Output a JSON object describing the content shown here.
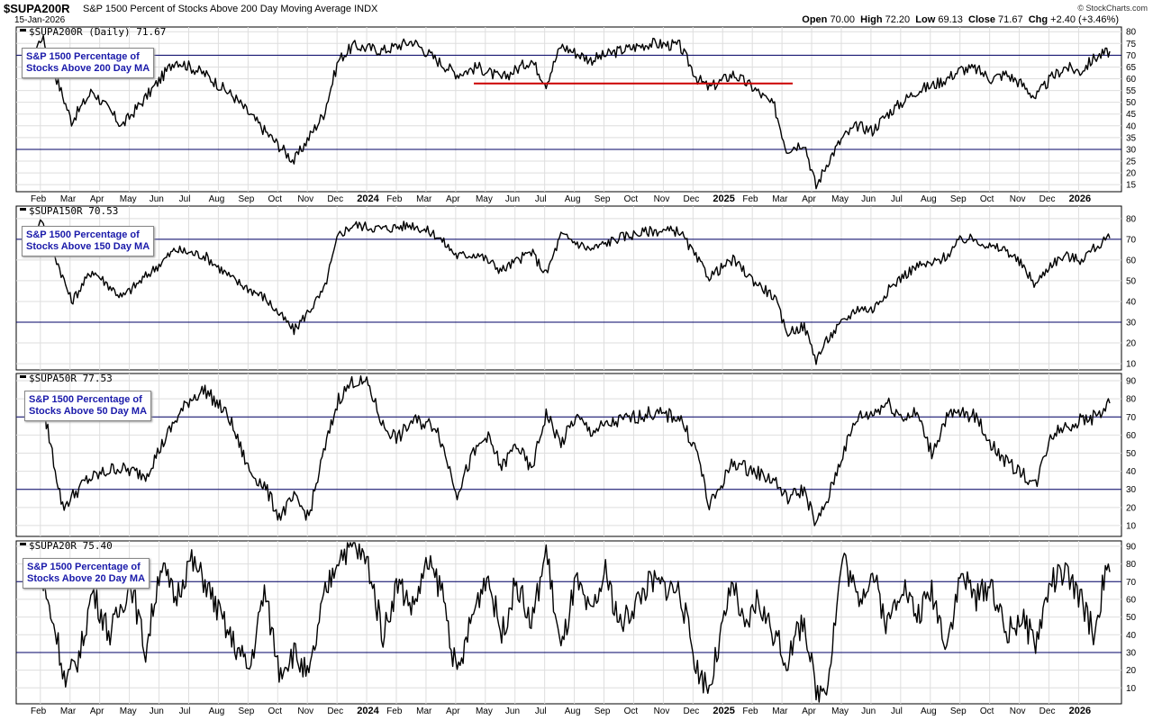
{
  "header": {
    "symbol": "$SUPA200R",
    "description": "S&P 1500 Percent of Stocks Above 200 Day Moving Average",
    "exchange": "INDX",
    "date": "15-Jan-2026",
    "brand": "© StockCharts.com",
    "open_label": "Open",
    "open": "70.00",
    "high_label": "High",
    "high": "72.20",
    "low_label": "Low",
    "low": "69.13",
    "close_label": "Close",
    "close": "71.67",
    "chg_label": "Chg",
    "chg": "+2.40 (+3.46%)"
  },
  "colors": {
    "line": "#000000",
    "reference": "#000066",
    "support_line": "#cc0000",
    "grid": "#dedede",
    "legend_text": "#1a1aaa"
  },
  "chart_data": [
    {
      "type": "line",
      "panel_label": "$SUPA200R (Daily) 71.67",
      "legend": "S&P 1500 Percentage of\nStocks Above 200 Day MA",
      "x_labels": [
        "Feb",
        "Mar",
        "Apr",
        "May",
        "Jun",
        "Jul",
        "Aug",
        "Sep",
        "Oct",
        "Nov",
        "Dec",
        "2024",
        "Feb",
        "Mar",
        "Apr",
        "May",
        "Jun",
        "Jul",
        "Aug",
        "Sep",
        "Oct",
        "Nov",
        "Dec",
        "2025",
        "Feb",
        "Mar",
        "Apr",
        "May",
        "Jun",
        "Jul",
        "Aug",
        "Sep",
        "Oct",
        "Nov",
        "Dec",
        "2026"
      ],
      "y_ticks": [
        15,
        20,
        25,
        30,
        35,
        40,
        45,
        50,
        55,
        60,
        65,
        70,
        75,
        80
      ],
      "ylim": [
        12,
        82
      ],
      "reference_lines": [
        70,
        30
      ],
      "support_line": {
        "from": "Apr 2024",
        "to": "Mar 2025",
        "value": 58
      },
      "series_anchors": [
        [
          0,
          65
        ],
        [
          0.5,
          78
        ],
        [
          1.5,
          42
        ],
        [
          2.2,
          55
        ],
        [
          3.2,
          40
        ],
        [
          4,
          52
        ],
        [
          5,
          68
        ],
        [
          6,
          62
        ],
        [
          7,
          52
        ],
        [
          8,
          38
        ],
        [
          9,
          25
        ],
        [
          10,
          45
        ],
        [
          10.5,
          68
        ],
        [
          11,
          74
        ],
        [
          12,
          72
        ],
        [
          13,
          76
        ],
        [
          13.8,
          68
        ],
        [
          14.5,
          62
        ],
        [
          15.2,
          65
        ],
        [
          16,
          60
        ],
        [
          17,
          68
        ],
        [
          17.5,
          58
        ],
        [
          18,
          74
        ],
        [
          19,
          68
        ],
        [
          20,
          72
        ],
        [
          21,
          75
        ],
        [
          22,
          74
        ],
        [
          22.6,
          60
        ],
        [
          23,
          56
        ],
        [
          23.8,
          62
        ],
        [
          24.5,
          56
        ],
        [
          25.2,
          48
        ],
        [
          25.6,
          30
        ],
        [
          26.2,
          33
        ],
        [
          26.6,
          14
        ],
        [
          27,
          25
        ],
        [
          27.5,
          35
        ],
        [
          28,
          40
        ],
        [
          28.5,
          38
        ],
        [
          29,
          45
        ],
        [
          29.5,
          50
        ],
        [
          30,
          55
        ],
        [
          30.5,
          57
        ],
        [
          31,
          60
        ],
        [
          31.5,
          64
        ],
        [
          32,
          64
        ],
        [
          32.5,
          60
        ],
        [
          33,
          62
        ],
        [
          33.5,
          58
        ],
        [
          34,
          52
        ],
        [
          34.5,
          60
        ],
        [
          35,
          65
        ],
        [
          35.5,
          63
        ],
        [
          36,
          69
        ],
        [
          36.5,
          71.67
        ]
      ]
    },
    {
      "type": "line",
      "panel_label": "$SUPA150R 70.53",
      "legend": "S&P 1500 Percentage of\nStocks Above 150 Day MA",
      "x_labels": [],
      "y_ticks": [
        10,
        20,
        30,
        40,
        50,
        60,
        70,
        80
      ],
      "ylim": [
        7,
        86
      ],
      "reference_lines": [
        70,
        30
      ],
      "series_anchors": [
        [
          0,
          65
        ],
        [
          0.5,
          80
        ],
        [
          1.5,
          40
        ],
        [
          2.2,
          55
        ],
        [
          3.2,
          42
        ],
        [
          4,
          52
        ],
        [
          5,
          65
        ],
        [
          6,
          62
        ],
        [
          7,
          50
        ],
        [
          8,
          42
        ],
        [
          9,
          26
        ],
        [
          10,
          45
        ],
        [
          10.5,
          72
        ],
        [
          11,
          77
        ],
        [
          12,
          75
        ],
        [
          13,
          77
        ],
        [
          13.8,
          72
        ],
        [
          14.5,
          62
        ],
        [
          15.2,
          63
        ],
        [
          16,
          55
        ],
        [
          17,
          64
        ],
        [
          17.5,
          53
        ],
        [
          18,
          72
        ],
        [
          19,
          65
        ],
        [
          20,
          71
        ],
        [
          21,
          74
        ],
        [
          22,
          74
        ],
        [
          22.6,
          60
        ],
        [
          23,
          52
        ],
        [
          23.8,
          60
        ],
        [
          24.5,
          50
        ],
        [
          25.2,
          42
        ],
        [
          25.6,
          25
        ],
        [
          26.2,
          28
        ],
        [
          26.6,
          12
        ],
        [
          27,
          22
        ],
        [
          27.5,
          30
        ],
        [
          28,
          37
        ],
        [
          28.5,
          36
        ],
        [
          29,
          45
        ],
        [
          29.5,
          52
        ],
        [
          30,
          57
        ],
        [
          30.5,
          58
        ],
        [
          31,
          62
        ],
        [
          31.5,
          70
        ],
        [
          32,
          70
        ],
        [
          32.5,
          66
        ],
        [
          33,
          65
        ],
        [
          33.5,
          58
        ],
        [
          34,
          48
        ],
        [
          34.5,
          58
        ],
        [
          35,
          62
        ],
        [
          35.5,
          60
        ],
        [
          36,
          66
        ],
        [
          36.5,
          70.53
        ]
      ]
    },
    {
      "type": "line",
      "panel_label": "$SUPA50R 77.53",
      "legend": "S&P 1500 Percentage of\nStocks Above 50 Day MA",
      "x_labels": [],
      "y_ticks": [
        10,
        20,
        30,
        40,
        50,
        60,
        70,
        80,
        90
      ],
      "ylim": [
        4,
        94
      ],
      "reference_lines": [
        70,
        30
      ],
      "series_anchors": [
        [
          0,
          70
        ],
        [
          0.5,
          80
        ],
        [
          1.2,
          20
        ],
        [
          2,
          35
        ],
        [
          3,
          42
        ],
        [
          4,
          38
        ],
        [
          5,
          68
        ],
        [
          5.5,
          80
        ],
        [
          6,
          85
        ],
        [
          6.8,
          70
        ],
        [
          7.5,
          40
        ],
        [
          8,
          32
        ],
        [
          8.5,
          15
        ],
        [
          9,
          25
        ],
        [
          9.5,
          15
        ],
        [
          10,
          50
        ],
        [
          10.5,
          80
        ],
        [
          11,
          90
        ],
        [
          11.5,
          88
        ],
        [
          12,
          65
        ],
        [
          12.5,
          58
        ],
        [
          13,
          68
        ],
        [
          13.8,
          65
        ],
        [
          14.5,
          28
        ],
        [
          15,
          48
        ],
        [
          15.5,
          60
        ],
        [
          16,
          42
        ],
        [
          16.5,
          55
        ],
        [
          17,
          40
        ],
        [
          17.5,
          72
        ],
        [
          18,
          55
        ],
        [
          18.5,
          70
        ],
        [
          19,
          62
        ],
        [
          20,
          68
        ],
        [
          21,
          72
        ],
        [
          22,
          70
        ],
        [
          22.6,
          50
        ],
        [
          23,
          20
        ],
        [
          23.8,
          45
        ],
        [
          24.5,
          40
        ],
        [
          25.2,
          35
        ],
        [
          25.6,
          25
        ],
        [
          26.2,
          30
        ],
        [
          26.6,
          10
        ],
        [
          27,
          25
        ],
        [
          27.5,
          50
        ],
        [
          28,
          70
        ],
        [
          28.5,
          72
        ],
        [
          29,
          78
        ],
        [
          29.5,
          70
        ],
        [
          30,
          72
        ],
        [
          30.5,
          50
        ],
        [
          31,
          70
        ],
        [
          31.5,
          72
        ],
        [
          32,
          70
        ],
        [
          32.5,
          55
        ],
        [
          33,
          45
        ],
        [
          33.5,
          40
        ],
        [
          34,
          32
        ],
        [
          34.5,
          60
        ],
        [
          35,
          65
        ],
        [
          35.5,
          68
        ],
        [
          36,
          70
        ],
        [
          36.5,
          77.53
        ]
      ]
    },
    {
      "type": "line",
      "panel_label": "$SUPA20R 75.40",
      "legend": "S&P 1500 Percentage of\nStocks Above 20 Day MA",
      "x_labels": [
        "Feb",
        "Mar",
        "Apr",
        "May",
        "Jun",
        "Jul",
        "Aug",
        "Sep",
        "Oct",
        "Nov",
        "Dec",
        "2024",
        "Feb",
        "Mar",
        "Apr",
        "May",
        "Jun",
        "Jul",
        "Aug",
        "Sep",
        "Oct",
        "Nov",
        "Dec",
        "2025",
        "Feb",
        "Mar",
        "Apr",
        "May",
        "Jun",
        "Jul",
        "Aug",
        "Sep",
        "Oct",
        "Nov",
        "Dec",
        "2026"
      ],
      "y_ticks": [
        10,
        20,
        30,
        40,
        50,
        60,
        70,
        80,
        90
      ],
      "ylim": [
        1,
        93
      ],
      "reference_lines": [
        70,
        30
      ],
      "series_anchors": [
        [
          0,
          80
        ],
        [
          0.5,
          70
        ],
        [
          1,
          40
        ],
        [
          1.3,
          12
        ],
        [
          1.8,
          30
        ],
        [
          2.2,
          65
        ],
        [
          2.8,
          40
        ],
        [
          3.5,
          70
        ],
        [
          4,
          30
        ],
        [
          4.5,
          80
        ],
        [
          5,
          60
        ],
        [
          5.5,
          82
        ],
        [
          6,
          70
        ],
        [
          6.8,
          40
        ],
        [
          7.5,
          20
        ],
        [
          8,
          65
        ],
        [
          8.5,
          20
        ],
        [
          9,
          30
        ],
        [
          9.5,
          15
        ],
        [
          10,
          60
        ],
        [
          10.5,
          85
        ],
        [
          11,
          90
        ],
        [
          11.5,
          80
        ],
        [
          12,
          40
        ],
        [
          12.5,
          70
        ],
        [
          13,
          55
        ],
        [
          13.5,
          80
        ],
        [
          14,
          65
        ],
        [
          14.5,
          15
        ],
        [
          15,
          50
        ],
        [
          15.5,
          75
        ],
        [
          16,
          40
        ],
        [
          16.5,
          70
        ],
        [
          17,
          45
        ],
        [
          17.5,
          88
        ],
        [
          18,
          30
        ],
        [
          18.5,
          70
        ],
        [
          19,
          50
        ],
        [
          19.5,
          75
        ],
        [
          20,
          45
        ],
        [
          21,
          70
        ],
        [
          22,
          65
        ],
        [
          22.6,
          20
        ],
        [
          23,
          10
        ],
        [
          23.8,
          70
        ],
        [
          24.2,
          40
        ],
        [
          24.6,
          60
        ],
        [
          25.2,
          40
        ],
        [
          25.6,
          25
        ],
        [
          26.2,
          50
        ],
        [
          26.6,
          5
        ],
        [
          27,
          15
        ],
        [
          27.5,
          85
        ],
        [
          28,
          60
        ],
        [
          28.5,
          75
        ],
        [
          29,
          45
        ],
        [
          29.5,
          70
        ],
        [
          30,
          50
        ],
        [
          30.5,
          65
        ],
        [
          31,
          35
        ],
        [
          31.5,
          75
        ],
        [
          32,
          60
        ],
        [
          32.5,
          70
        ],
        [
          33,
          40
        ],
        [
          33.5,
          50
        ],
        [
          34,
          35
        ],
        [
          34.5,
          70
        ],
        [
          35,
          75
        ],
        [
          35.5,
          60
        ],
        [
          36,
          40
        ],
        [
          36.3,
          72
        ],
        [
          36.5,
          75.4
        ]
      ]
    }
  ]
}
